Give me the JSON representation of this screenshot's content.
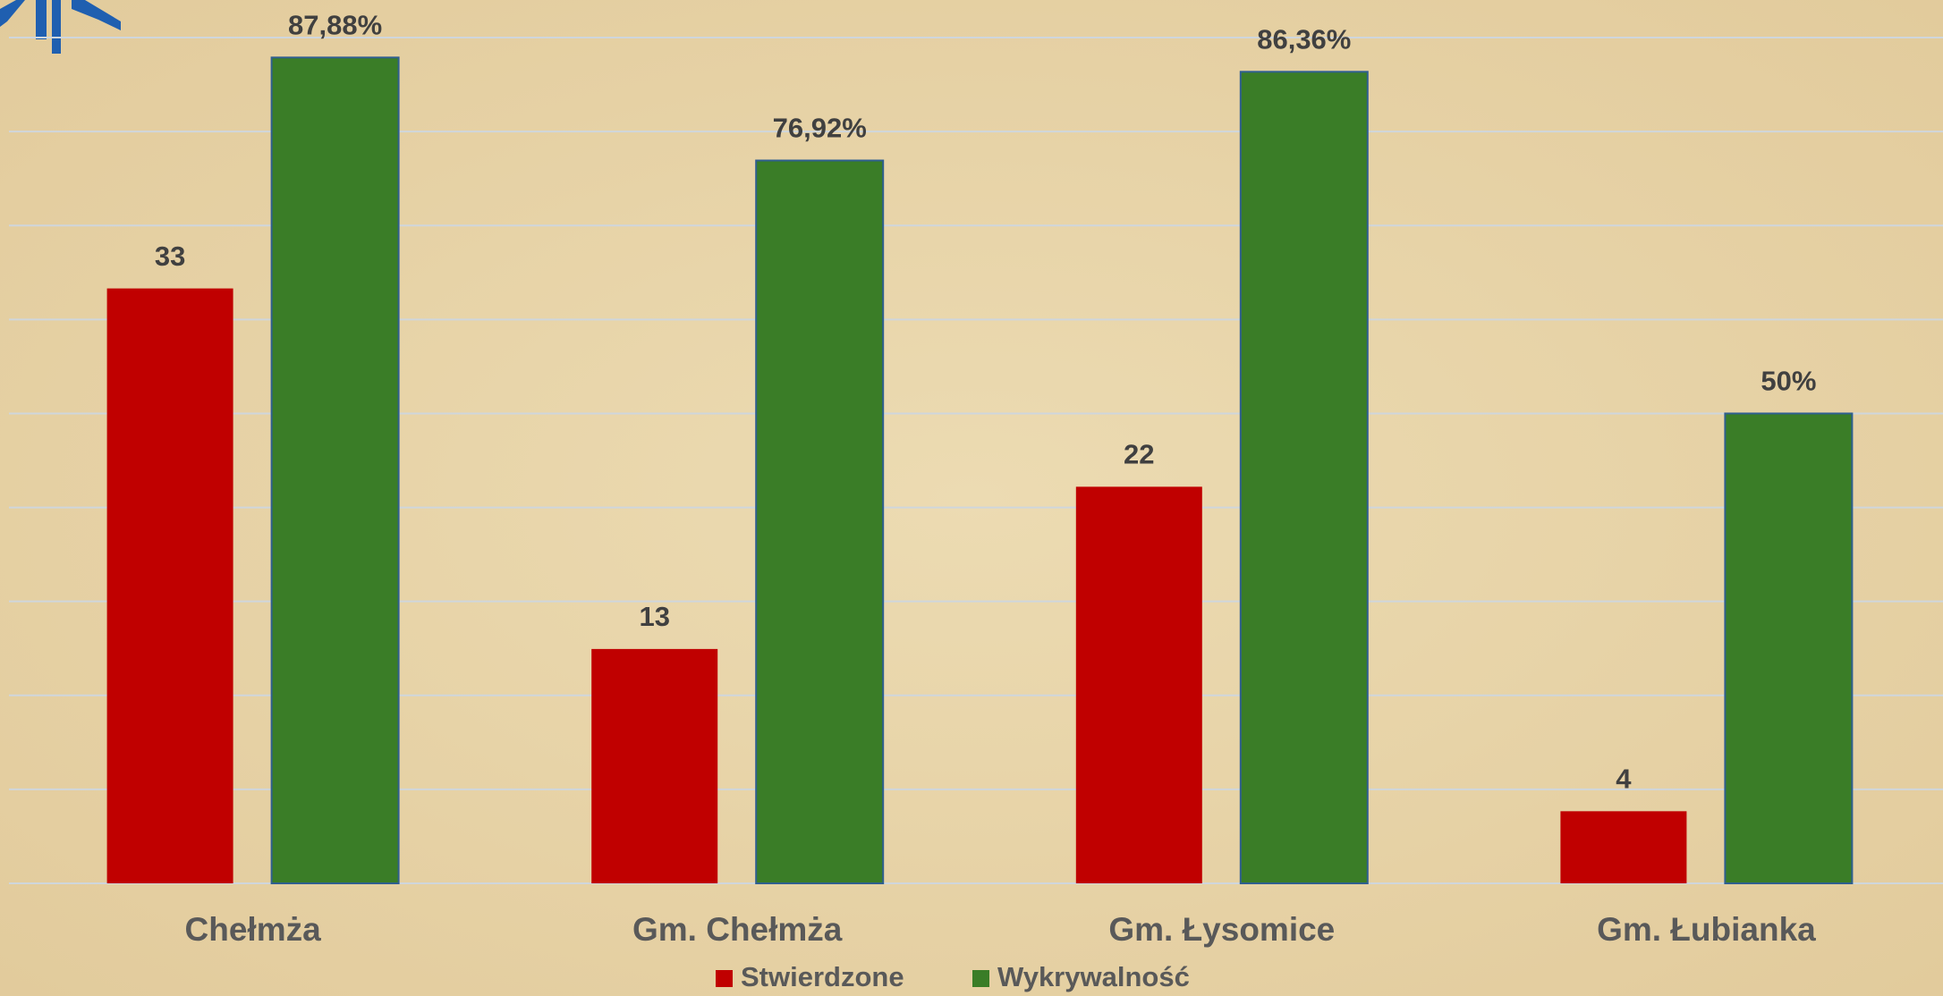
{
  "chart_data": {
    "type": "bar",
    "categories": [
      "Chełmża",
      "Gm. Chełmża",
      "Gm. Łysomice",
      "Gm. Łubianka"
    ],
    "series": [
      {
        "name": "Stwierdzone",
        "color": "#c00000",
        "axis": "y2",
        "values": [
          33,
          13,
          22,
          4
        ]
      },
      {
        "name": "Wykrywalność",
        "color": "#3a7d27",
        "values": [
          87.88,
          76.92,
          86.36,
          50
        ],
        "value_labels": [
          "87,88%",
          "76,92%",
          "86,36%",
          "50%"
        ]
      }
    ],
    "ylim": [
      0,
      94
    ],
    "yticks": [
      0,
      10,
      20,
      30,
      40,
      50,
      60,
      70,
      80,
      90
    ],
    "y2lim": [
      0,
      49
    ],
    "grid": true,
    "legend": "bottom"
  }
}
